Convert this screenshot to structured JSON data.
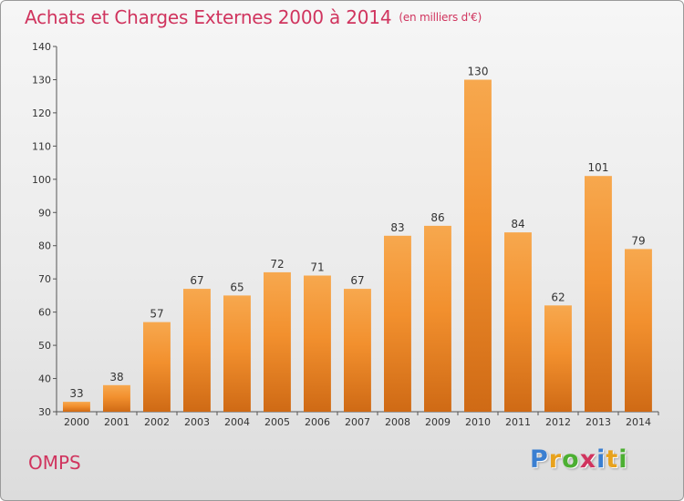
{
  "header": {
    "title": "Achats et Charges Externes 2000 à 2014",
    "unit": "(en milliers d'€)"
  },
  "footer": {
    "commune": "OMPS",
    "logo_letters": [
      "P",
      "r",
      "o",
      "x",
      "i",
      "t",
      "i"
    ],
    "logo_colors": [
      "#3a7fd1",
      "#e8a21c",
      "#4caf32",
      "#d0345e",
      "#3a7fd1",
      "#e8a21c",
      "#4caf32"
    ]
  },
  "chart_data": {
    "type": "bar",
    "categories": [
      "2000",
      "2001",
      "2002",
      "2003",
      "2004",
      "2005",
      "2006",
      "2007",
      "2008",
      "2009",
      "2010",
      "2011",
      "2012",
      "2013",
      "2014"
    ],
    "values": [
      33,
      38,
      57,
      67,
      65,
      72,
      71,
      67,
      83,
      86,
      130,
      84,
      62,
      101,
      79
    ],
    "title": "Achats et Charges Externes 2000 à 2014",
    "ylim": [
      30,
      140
    ],
    "yticks": [
      30,
      40,
      50,
      60,
      70,
      80,
      90,
      100,
      110,
      120,
      130,
      140
    ],
    "grid": false,
    "legend": "none",
    "bar_color": "#f2902e",
    "bar_color_light": "#f7a84e",
    "bar_color_dark": "#cf6a15"
  }
}
